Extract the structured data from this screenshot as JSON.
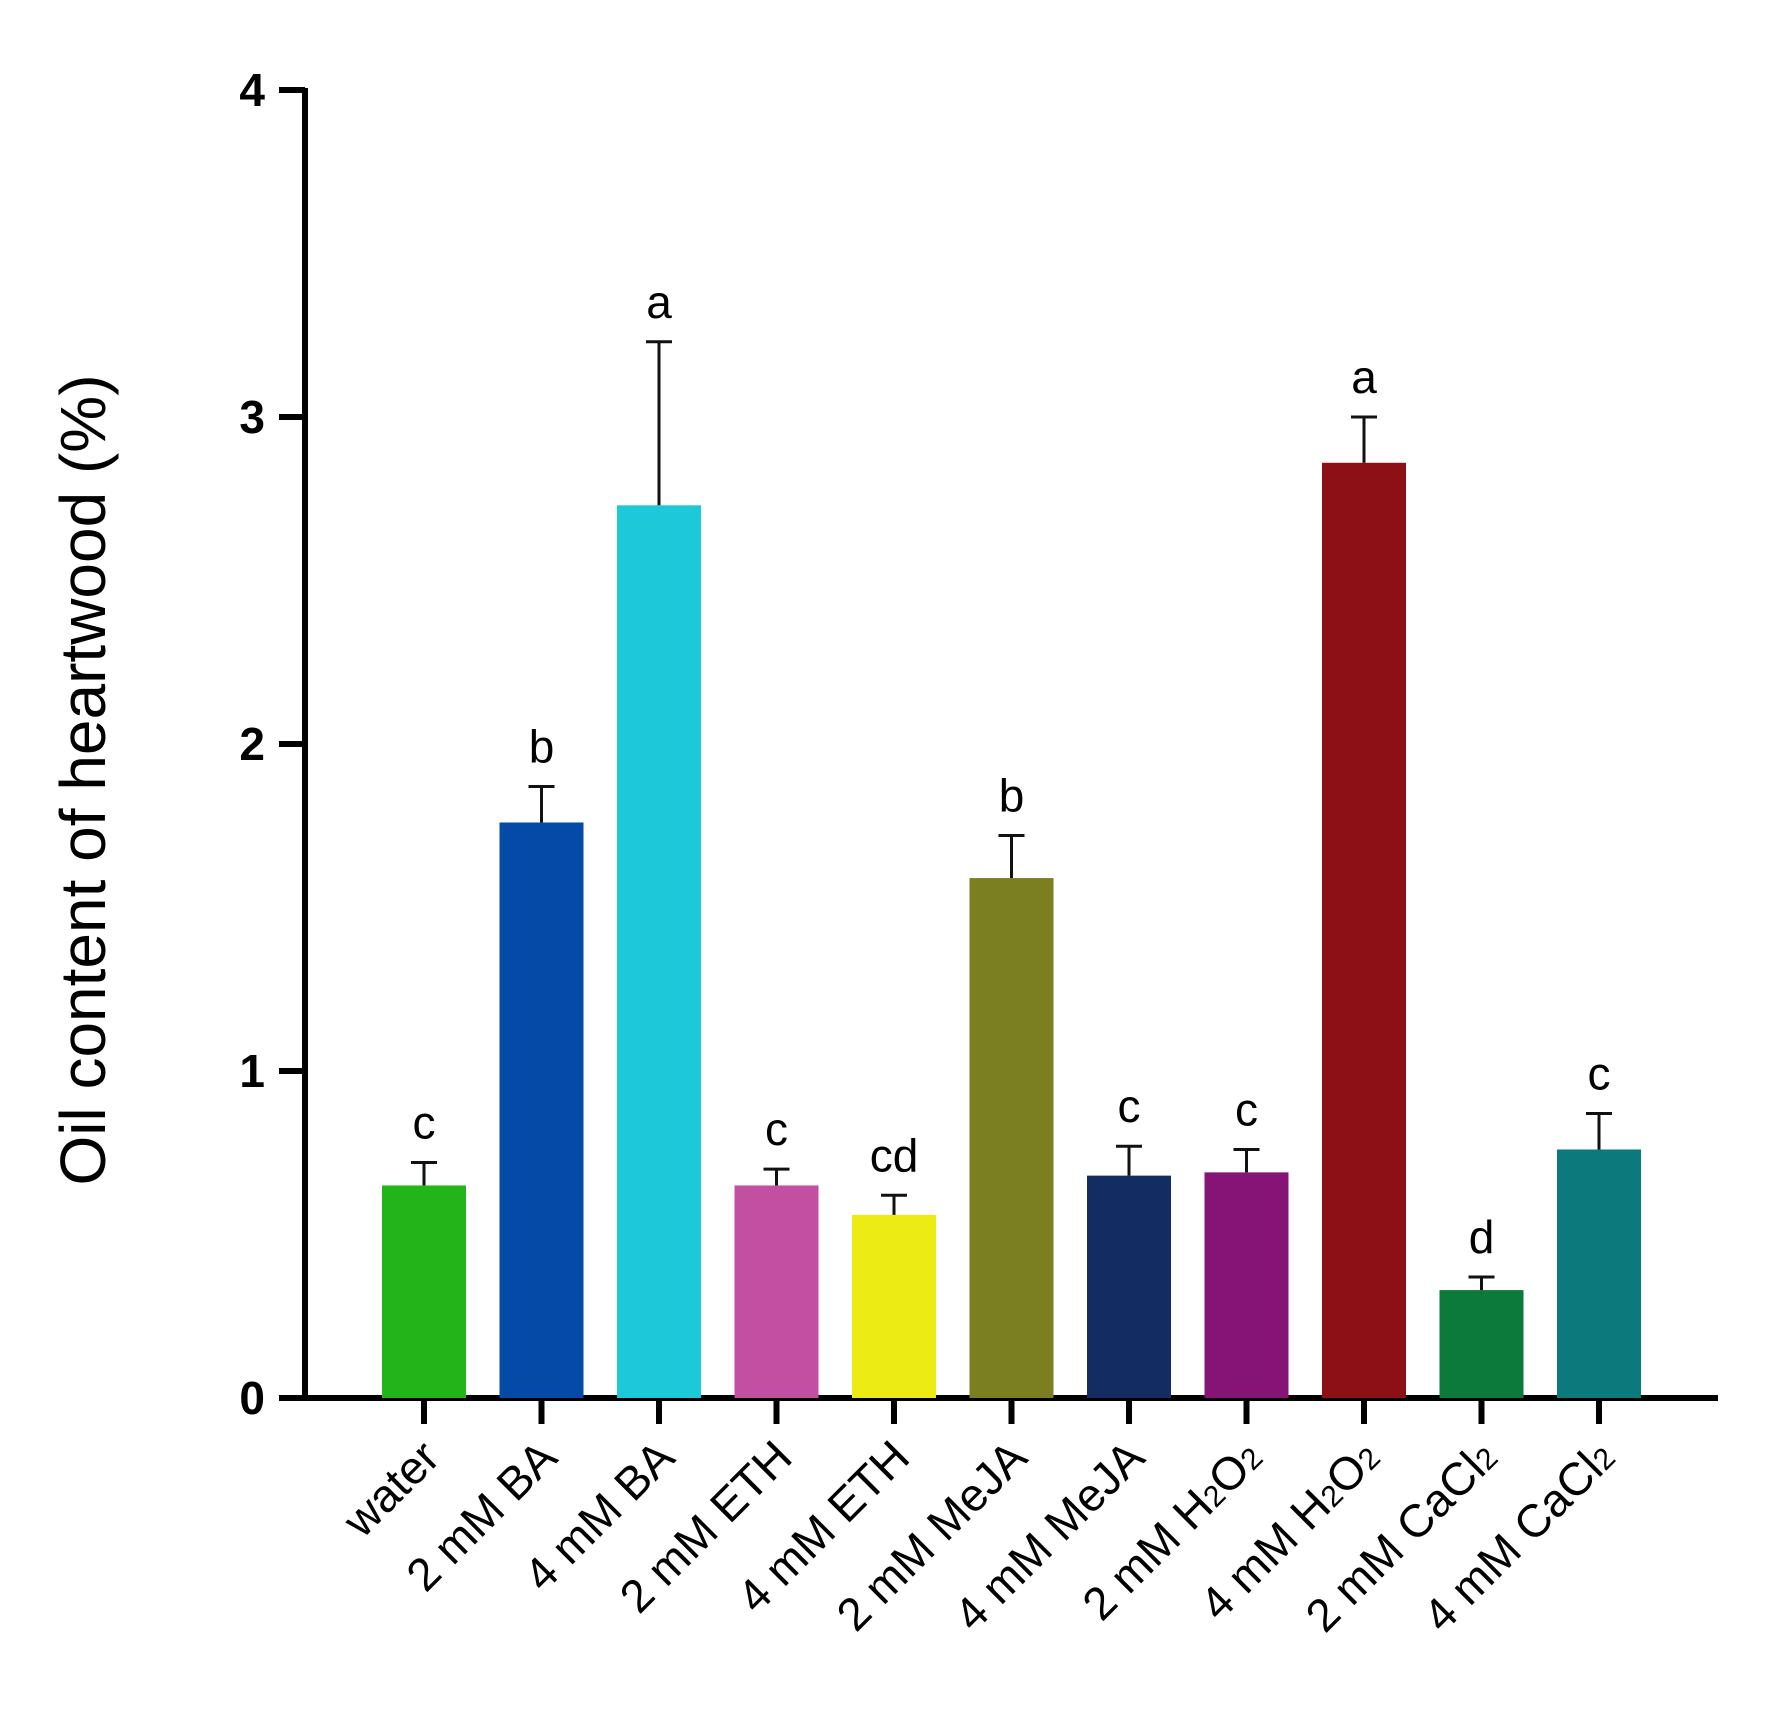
{
  "chart_data": {
    "type": "bar",
    "title": "",
    "xlabel": "",
    "ylabel": "Oil content of heartwood (%)",
    "ylim": [
      0,
      4
    ],
    "yticks": [
      "0",
      "1",
      "2",
      "3",
      "4"
    ],
    "legend": "none",
    "grid": false,
    "categories": [
      {
        "main": "water",
        "sub": "",
        "tail": ""
      },
      {
        "main": "2 mM BA",
        "sub": "",
        "tail": ""
      },
      {
        "main": "4 mM BA",
        "sub": "",
        "tail": ""
      },
      {
        "main": "2 mM ETH",
        "sub": "",
        "tail": ""
      },
      {
        "main": "4 mM ETH",
        "sub": "",
        "tail": ""
      },
      {
        "main": "2 mM MeJA",
        "sub": "",
        "tail": ""
      },
      {
        "main": "4 mM MeJA",
        "sub": "",
        "tail": ""
      },
      {
        "main": "2 mM H",
        "sub": "2",
        "tail": "O",
        "sub2": "2"
      },
      {
        "main": "4 mM H",
        "sub": "2",
        "tail": "O",
        "sub2": "2"
      },
      {
        "main": "2 mM CaCl",
        "sub": "2",
        "tail": ""
      },
      {
        "main": "4 mM CaCl",
        "sub": "2",
        "tail": ""
      }
    ],
    "values": [
      0.65,
      1.76,
      2.73,
      0.65,
      0.56,
      1.59,
      0.68,
      0.69,
      2.86,
      0.33,
      0.76
    ],
    "errors": [
      0.07,
      0.11,
      0.5,
      0.05,
      0.06,
      0.13,
      0.09,
      0.07,
      0.14,
      0.04,
      0.11
    ],
    "significance": [
      "c",
      "b",
      "a",
      "c",
      "cd",
      "b",
      "c",
      "c",
      "a",
      "d",
      "c"
    ],
    "colors": [
      "#22B418",
      "#054AA6",
      "#1DC8D8",
      "#C24FA2",
      "#ECEC14",
      "#7B7F22",
      "#132D62",
      "#861477",
      "#8C1016",
      "#0C7A3A",
      "#0C7A7C"
    ]
  }
}
